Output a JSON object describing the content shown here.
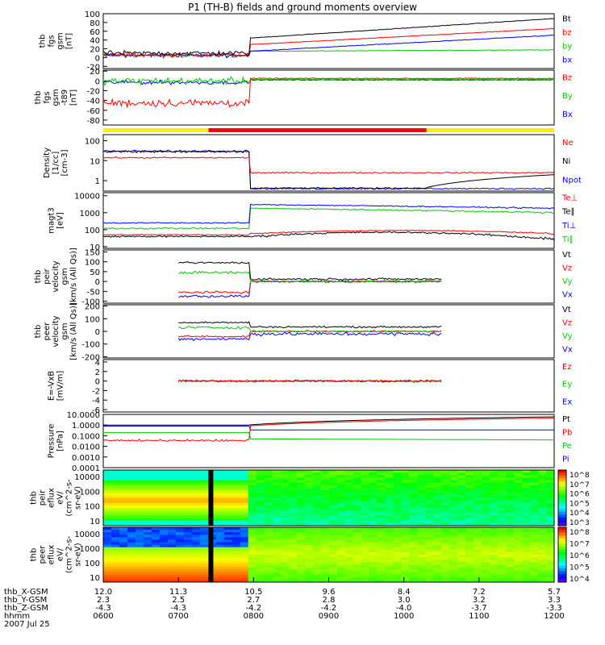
{
  "chart_data": {
    "type": "line",
    "title": "P1 (TH-B) fields and ground moments overview",
    "x_axis": {
      "rows": [
        {
          "label": "thb_X-GSM",
          "values": [
            "12.0",
            "11.3",
            "10.5",
            "9.6",
            "8.4",
            "7.2",
            "5.7"
          ]
        },
        {
          "label": "thb_Y-GSM",
          "values": [
            "2.3",
            "2.5",
            "2.7",
            "2.8",
            "3.0",
            "3.2",
            "3.3"
          ]
        },
        {
          "label": "thb_Z-GSM",
          "values": [
            "-4.3",
            "-4.3",
            "-4.2",
            "-4.2",
            "-4.0",
            "-3.7",
            "-3.3"
          ]
        },
        {
          "label": "hhmm",
          "values": [
            "0600",
            "0700",
            "0800",
            "0900",
            "1000",
            "1100",
            "1200"
          ]
        }
      ],
      "date": "2007 Jul 25",
      "range_hours": [
        6,
        12
      ]
    },
    "panels": [
      {
        "id": "fgs-mag",
        "ylabel": [
          "thb",
          "fgs",
          "gsm",
          "[nT]"
        ],
        "ticks": [
          "100",
          "80",
          "60",
          "40",
          "20",
          "0",
          "-20"
        ],
        "ylim": [
          -25,
          100
        ],
        "legend": [
          {
            "name": "Bt",
            "color": "#000000"
          },
          {
            "name": "bz",
            "color": "#ff0000"
          },
          {
            "name": "by",
            "color": "#00cc00"
          },
          {
            "name": "bx",
            "color": "#0000ff"
          }
        ]
      },
      {
        "id": "fgs-dipole",
        "ylabel": [
          "thb",
          "fgs",
          "gsm",
          "-t89",
          "[nT]"
        ],
        "ticks": [
          "20",
          "0",
          "-20",
          "-40",
          "-60",
          "-80"
        ],
        "ylim": [
          -90,
          22
        ],
        "legend": [
          {
            "name": "Bz",
            "color": "#ff0000"
          },
          {
            "name": "By",
            "color": "#00cc00"
          },
          {
            "name": "Bx",
            "color": "#0000ff"
          }
        ]
      },
      {
        "id": "density",
        "ylabel": [
          "Density",
          "[1/cc]",
          "[cm-3]"
        ],
        "ticks": [
          "100",
          "10",
          "1"
        ],
        "ylim": [
          0.3,
          200
        ],
        "log": true,
        "legend": [
          {
            "name": "Ne",
            "color": "#ff0000"
          },
          {
            "name": "Ni",
            "color": "#000000"
          },
          {
            "name": "Npot",
            "color": "#0000ff"
          }
        ]
      },
      {
        "id": "temperature",
        "ylabel": [
          "magt3",
          "[eV]"
        ],
        "ticks": [
          "10000",
          "1000",
          "100",
          "10"
        ],
        "ylim": [
          8,
          15000
        ],
        "log": true,
        "legend": [
          {
            "name": "Te⊥",
            "color": "#ff0000"
          },
          {
            "name": "Te∥",
            "color": "#000000"
          },
          {
            "name": "Ti⊥",
            "color": "#0000ff"
          },
          {
            "name": "Ti∥",
            "color": "#00cc00"
          }
        ]
      },
      {
        "id": "ion-velocity",
        "ylabel": [
          "thb",
          "peir",
          "velocity",
          "gsm",
          "[km/s (All Qs)]"
        ],
        "ticks": [
          "150",
          "100",
          "50",
          "0",
          "-50",
          "-100"
        ],
        "ylim": [
          -110,
          160
        ],
        "legend": [
          {
            "name": "Vt",
            "color": "#000000"
          },
          {
            "name": "Vz",
            "color": "#ff0000"
          },
          {
            "name": "Vy",
            "color": "#00cc00"
          },
          {
            "name": "Vx",
            "color": "#0000ff"
          }
        ]
      },
      {
        "id": "electron-velocity",
        "ylabel": [
          "thb",
          "peer",
          "velocity",
          "gsm",
          "[km/s (All Qs)]"
        ],
        "ticks": [
          "200",
          "100",
          "0",
          "-100",
          "-200"
        ],
        "ylim": [
          -210,
          210
        ],
        "legend": [
          {
            "name": "Vt",
            "color": "#000000"
          },
          {
            "name": "Vz",
            "color": "#ff0000"
          },
          {
            "name": "Vy",
            "color": "#00cc00"
          },
          {
            "name": "Vx",
            "color": "#0000ff"
          }
        ]
      },
      {
        "id": "efield",
        "ylabel": [
          "E=-VxB",
          "[mV/m]"
        ],
        "ticks": [
          "4",
          "2",
          "0",
          "-2",
          "-4",
          "-6"
        ],
        "ylim": [
          -6.5,
          4.5
        ],
        "legend": [
          {
            "name": "Ez",
            "color": "#ff0000"
          },
          {
            "name": "Ey",
            "color": "#00cc00"
          },
          {
            "name": "Ex",
            "color": "#0000ff"
          }
        ]
      },
      {
        "id": "pressure",
        "ylabel": [
          "Pressure",
          "[nPa]"
        ],
        "ticks": [
          "10.0000",
          "1.0000",
          "0.1000",
          "0.0100",
          "0.0010",
          "0.0001"
        ],
        "ylim": [
          0.0001,
          10
        ],
        "log": true,
        "legend": [
          {
            "name": "Pt",
            "color": "#000000"
          },
          {
            "name": "Pb",
            "color": "#ff0000"
          },
          {
            "name": "Pe",
            "color": "#00cc00"
          },
          {
            "name": "Pi",
            "color": "#0000ff"
          }
        ]
      },
      {
        "id": "ion-spectrogram",
        "type": "heatmap",
        "ylabel": [
          "thb",
          "peir",
          "eflux",
          "eV/",
          "(cm^2-s-",
          "sr-eV)"
        ],
        "ticks": [
          "10000",
          "1000",
          "100",
          "10"
        ],
        "colorbar": [
          "10^8",
          "10^7",
          "10^6",
          "10^5",
          "10^4",
          "10^3"
        ]
      },
      {
        "id": "electron-spectrogram",
        "type": "heatmap",
        "ylabel": [
          "thb",
          "peer",
          "eflux",
          "eV/",
          "(cm^2-s-",
          "sr-eV)"
        ],
        "ticks": [
          "10000",
          "1000",
          "100",
          "10"
        ],
        "colorbar": [
          "10^8",
          "10^7",
          "10^6",
          "10^5",
          "10^4"
        ]
      }
    ]
  }
}
